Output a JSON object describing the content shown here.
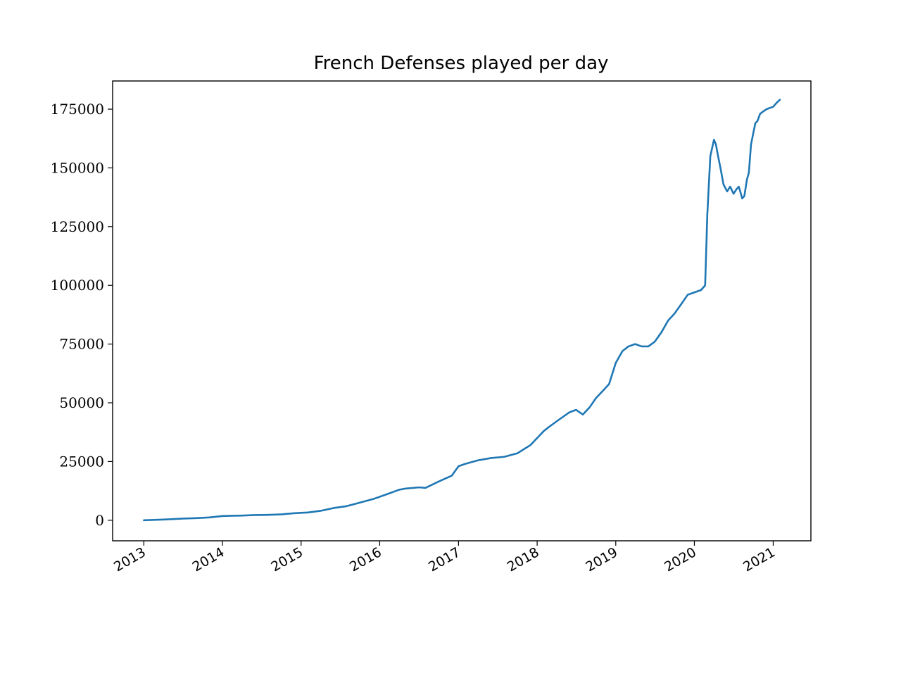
{
  "chart_data": {
    "type": "line",
    "title": "French Defenses played per day",
    "xlabel": "",
    "ylabel": "",
    "x_range": [
      "2012-08-09",
      "2021-06-25"
    ],
    "ylim": [
      -8750,
      187000
    ],
    "x_ticks": [
      {
        "date": "2013-01-01",
        "label": "2013"
      },
      {
        "date": "2014-01-01",
        "label": "2014"
      },
      {
        "date": "2015-01-01",
        "label": "2015"
      },
      {
        "date": "2016-01-01",
        "label": "2016"
      },
      {
        "date": "2017-01-01",
        "label": "2017"
      },
      {
        "date": "2018-01-01",
        "label": "2018"
      },
      {
        "date": "2019-01-01",
        "label": "2019"
      },
      {
        "date": "2020-01-01",
        "label": "2020"
      },
      {
        "date": "2021-01-01",
        "label": "2021"
      }
    ],
    "y_ticks": [
      {
        "value": 0,
        "label": "0"
      },
      {
        "value": 25000,
        "label": "25000"
      },
      {
        "value": 50000,
        "label": "50000"
      },
      {
        "value": 75000,
        "label": "75000"
      },
      {
        "value": 100000,
        "label": "100000"
      },
      {
        "value": 125000,
        "label": "125000"
      },
      {
        "value": 150000,
        "label": "150000"
      },
      {
        "value": 175000,
        "label": "175000"
      }
    ],
    "grid": false,
    "legend": "none",
    "series": [
      {
        "color": "#1f77b4",
        "x": [
          "2013-01-01",
          "2013-03-01",
          "2013-05-01",
          "2013-07-01",
          "2013-09-01",
          "2013-11-01",
          "2014-01-01",
          "2014-02-15",
          "2014-04-01",
          "2014-06-01",
          "2014-08-01",
          "2014-10-01",
          "2014-12-01",
          "2015-02-01",
          "2015-04-01",
          "2015-06-01",
          "2015-08-01",
          "2015-10-01",
          "2015-12-01",
          "2016-02-01",
          "2016-04-01",
          "2016-05-01",
          "2016-07-01",
          "2016-08-01",
          "2016-10-01",
          "2016-12-01",
          "2017-01-01",
          "2017-02-01",
          "2017-04-01",
          "2017-06-01",
          "2017-08-01",
          "2017-10-01",
          "2017-12-01",
          "2018-02-01",
          "2018-03-01",
          "2018-04-15",
          "2018-06-01",
          "2018-07-01",
          "2018-08-01",
          "2018-09-01",
          "2018-10-01",
          "2018-11-01",
          "2018-12-01",
          "2019-01-01",
          "2019-02-01",
          "2019-03-01",
          "2019-04-01",
          "2019-05-01",
          "2019-06-01",
          "2019-07-01",
          "2019-08-01",
          "2019-09-01",
          "2019-10-01",
          "2019-11-01",
          "2019-12-01",
          "2020-01-01",
          "2020-02-01",
          "2020-02-20",
          "2020-03-01",
          "2020-03-15",
          "2020-04-01",
          "2020-04-10",
          "2020-04-20",
          "2020-05-01",
          "2020-05-15",
          "2020-06-01",
          "2020-06-15",
          "2020-07-01",
          "2020-07-15",
          "2020-07-25",
          "2020-08-01",
          "2020-08-10",
          "2020-08-20",
          "2020-09-01",
          "2020-09-10",
          "2020-09-20",
          "2020-10-01",
          "2020-10-10",
          "2020-10-20",
          "2020-11-01",
          "2020-11-15",
          "2020-12-01",
          "2020-12-15",
          "2021-01-01",
          "2021-01-10",
          "2021-01-20",
          "2021-02-01"
        ],
        "y": [
          0,
          200,
          400,
          700,
          900,
          1200,
          1800,
          1900,
          2000,
          2200,
          2300,
          2500,
          3000,
          3300,
          4000,
          5200,
          6000,
          7500,
          9000,
          11000,
          13000,
          13500,
          14000,
          13800,
          16500,
          19000,
          23000,
          24000,
          25500,
          26500,
          27000,
          28500,
          32000,
          38000,
          40000,
          43000,
          46000,
          47000,
          45000,
          48000,
          52000,
          55000,
          58000,
          67000,
          72000,
          74000,
          75000,
          74000,
          74000,
          76000,
          80000,
          85000,
          88000,
          92000,
          96000,
          97000,
          98000,
          100000,
          130000,
          155000,
          162000,
          160000,
          155000,
          150000,
          143000,
          140000,
          142000,
          139000,
          141000,
          142000,
          140000,
          137000,
          138000,
          145000,
          148000,
          160000,
          165000,
          169000,
          170000,
          173000,
          174000,
          175000,
          175500,
          176000,
          177000,
          178000,
          179000
        ]
      }
    ]
  }
}
